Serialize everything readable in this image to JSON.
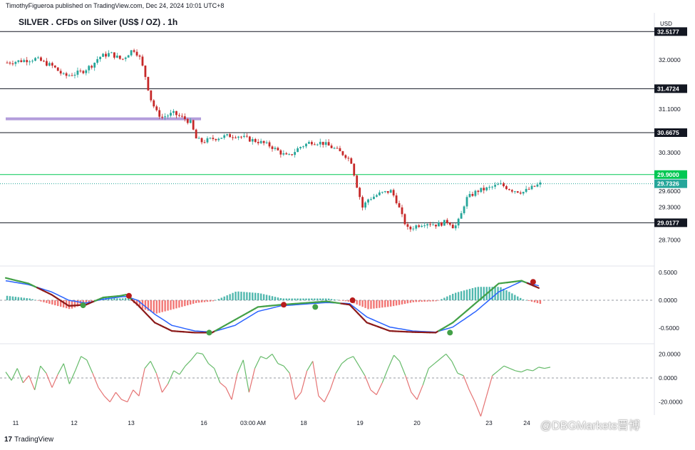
{
  "header": {
    "publisher": "TimothyFigueroa published on TradingView.com, Dec 24, 2024 10:01 UTC+8",
    "title": "SILVER . CFDs on Silver (US$ / OZ) . 1h",
    "currency": "USD"
  },
  "footer": {
    "brand_logo": "17",
    "brand_name": "TradingView",
    "watermark": "@DBGMarkets晋博"
  },
  "colors": {
    "up": "#26a69a",
    "down": "#c62828",
    "hline": "#131722",
    "purple_level": "#b39ddb",
    "green_level": "#00c853",
    "macd_fast": "#8b1a1a",
    "macd_signal": "#2962ff",
    "macd_hist_up": "#26a69a",
    "macd_hist_down": "#ef5350",
    "osc_up": "#66bb6a",
    "osc_down": "#e57373"
  },
  "chart_data": [
    {
      "type": "candlestick",
      "title": "SILVER . CFDs on Silver (US$ / OZ) . 1h",
      "ylabel": "USD",
      "ylim": [
        28.5,
        32.6
      ],
      "x_tick_labels": [
        "11",
        "12",
        "13",
        "16",
        "03:00 AM",
        "18",
        "19",
        "20",
        "23",
        "24"
      ],
      "y_tick_labels": [
        "32.0000",
        "31.1000",
        "30.3000",
        "29.6000",
        "29.3000",
        "28.7000"
      ],
      "levels": [
        {
          "value": 32.5177,
          "label": "32.5177",
          "style": "line"
        },
        {
          "value": 31.4724,
          "label": "31.4724",
          "style": "line"
        },
        {
          "value": 30.6675,
          "label": "30.6675",
          "style": "line"
        },
        {
          "value": 29.9,
          "label": "29.9000",
          "style": "green"
        },
        {
          "value": 29.7326,
          "label": "29.7326",
          "style": "last-price"
        },
        {
          "value": 29.0177,
          "label": "29.0177",
          "style": "line"
        },
        {
          "value": 30.92,
          "label": "",
          "style": "purple-zone"
        }
      ],
      "close_path": [
        [
          0,
          31.95
        ],
        [
          5,
          32.02
        ],
        [
          8,
          31.88
        ],
        [
          10,
          31.7
        ],
        [
          13,
          31.78
        ],
        [
          15,
          31.92
        ],
        [
          16,
          32.05
        ],
        [
          18,
          32.12
        ],
        [
          20,
          32.0
        ],
        [
          22,
          32.2
        ],
        [
          23,
          32.08
        ],
        [
          24,
          31.75
        ],
        [
          25,
          31.3
        ],
        [
          26,
          31.05
        ],
        [
          27,
          30.95
        ],
        [
          29,
          31.02
        ],
        [
          31,
          30.92
        ],
        [
          32,
          30.85
        ],
        [
          33,
          30.55
        ],
        [
          34,
          30.5
        ],
        [
          36,
          30.56
        ],
        [
          38,
          30.6
        ],
        [
          40,
          30.62
        ],
        [
          42,
          30.55
        ],
        [
          44,
          30.5
        ],
        [
          46,
          30.42
        ],
        [
          48,
          30.28
        ],
        [
          49,
          30.22
        ],
        [
          51,
          30.4
        ],
        [
          53,
          30.5
        ],
        [
          55,
          30.48
        ],
        [
          57,
          30.38
        ],
        [
          59,
          30.25
        ],
        [
          60,
          30.15
        ],
        [
          61,
          29.7
        ],
        [
          62,
          29.3
        ],
        [
          63,
          29.45
        ],
        [
          65,
          29.55
        ],
        [
          67,
          29.6
        ],
        [
          68,
          29.4
        ],
        [
          69,
          29.1
        ],
        [
          70,
          28.88
        ],
        [
          71,
          28.95
        ],
        [
          73,
          29.02
        ],
        [
          75,
          28.98
        ],
        [
          77,
          29.05
        ],
        [
          78,
          28.92
        ],
        [
          79,
          29.1
        ],
        [
          80,
          29.45
        ],
        [
          82,
          29.6
        ],
        [
          84,
          29.65
        ],
        [
          86,
          29.72
        ],
        [
          88,
          29.62
        ],
        [
          90,
          29.58
        ],
        [
          92,
          29.68
        ],
        [
          93,
          29.73
        ]
      ]
    },
    {
      "type": "line",
      "title": "",
      "ylim": [
        -0.6,
        0.55
      ],
      "y_tick_labels": [
        "0.5000",
        "0.0000",
        "-0.5000"
      ],
      "series_fast": [
        [
          0,
          0.4
        ],
        [
          4,
          0.3
        ],
        [
          8,
          0.1
        ],
        [
          11,
          -0.1
        ],
        [
          14,
          -0.08
        ],
        [
          17,
          0.05
        ],
        [
          20,
          0.08
        ],
        [
          21,
          0.1
        ],
        [
          23,
          -0.08
        ],
        [
          26,
          -0.4
        ],
        [
          29,
          -0.55
        ],
        [
          33,
          -0.58
        ],
        [
          36,
          -0.58
        ],
        [
          40,
          -0.35
        ],
        [
          44,
          -0.12
        ],
        [
          48,
          -0.08
        ],
        [
          52,
          -0.05
        ],
        [
          56,
          -0.02
        ],
        [
          60,
          -0.08
        ],
        [
          63,
          -0.4
        ],
        [
          67,
          -0.55
        ],
        [
          71,
          -0.57
        ],
        [
          75,
          -0.58
        ],
        [
          78,
          -0.4
        ],
        [
          82,
          -0.05
        ],
        [
          86,
          0.3
        ],
        [
          90,
          0.35
        ],
        [
          93,
          0.22
        ]
      ],
      "series_signal": [
        [
          0,
          0.35
        ],
        [
          4,
          0.28
        ],
        [
          8,
          0.15
        ],
        [
          11,
          0.0
        ],
        [
          14,
          -0.05
        ],
        [
          17,
          0.02
        ],
        [
          20,
          0.06
        ],
        [
          21,
          0.07
        ],
        [
          23,
          0.0
        ],
        [
          26,
          -0.25
        ],
        [
          29,
          -0.45
        ],
        [
          33,
          -0.55
        ],
        [
          36,
          -0.57
        ],
        [
          40,
          -0.45
        ],
        [
          44,
          -0.2
        ],
        [
          48,
          -0.1
        ],
        [
          52,
          -0.07
        ],
        [
          56,
          -0.04
        ],
        [
          60,
          -0.06
        ],
        [
          63,
          -0.3
        ],
        [
          67,
          -0.48
        ],
        [
          71,
          -0.55
        ],
        [
          75,
          -0.57
        ],
        [
          78,
          -0.48
        ],
        [
          82,
          -0.2
        ],
        [
          86,
          0.15
        ],
        [
          90,
          0.34
        ],
        [
          93,
          0.26
        ]
      ],
      "cross_markers": [
        {
          "x": 13.5,
          "y": -0.09,
          "kind": "bull"
        },
        {
          "x": 21.5,
          "y": 0.08,
          "kind": "bear"
        },
        {
          "x": 35.5,
          "y": -0.58,
          "kind": "bull"
        },
        {
          "x": 48.5,
          "y": -0.08,
          "kind": "bear"
        },
        {
          "x": 54,
          "y": -0.12,
          "kind": "bull"
        },
        {
          "x": 60.5,
          "y": 0.0,
          "kind": "bear"
        },
        {
          "x": 77.5,
          "y": -0.58,
          "kind": "bull"
        },
        {
          "x": 92,
          "y": 0.33,
          "kind": "bear"
        }
      ]
    },
    {
      "type": "line",
      "title": "",
      "ylim": [
        -25,
        25
      ],
      "y_tick_labels": [
        "20.0000",
        "0.0000",
        "-20.0000"
      ],
      "values": [
        5,
        -2,
        8,
        -4,
        2,
        -10,
        10,
        4,
        -8,
        3,
        12,
        -5,
        6,
        18,
        15,
        4,
        -8,
        -15,
        -20,
        -12,
        -18,
        -20,
        -10,
        -15,
        8,
        14,
        4,
        -12,
        -5,
        6,
        3,
        10,
        15,
        21,
        20,
        12,
        8,
        -4,
        -8,
        -18,
        4,
        15,
        -12,
        8,
        18,
        16,
        20,
        12,
        10,
        4,
        -18,
        -12,
        6,
        14,
        -15,
        -20,
        -10,
        4,
        12,
        16,
        18,
        10,
        2,
        -10,
        -14,
        -4,
        8,
        19,
        14,
        2,
        -12,
        -18,
        -6,
        8,
        12,
        16,
        20,
        14,
        4,
        2,
        -10,
        -20,
        -32,
        -15,
        2,
        6,
        10,
        8,
        6,
        5,
        7,
        6,
        9,
        8,
        9
      ]
    }
  ]
}
